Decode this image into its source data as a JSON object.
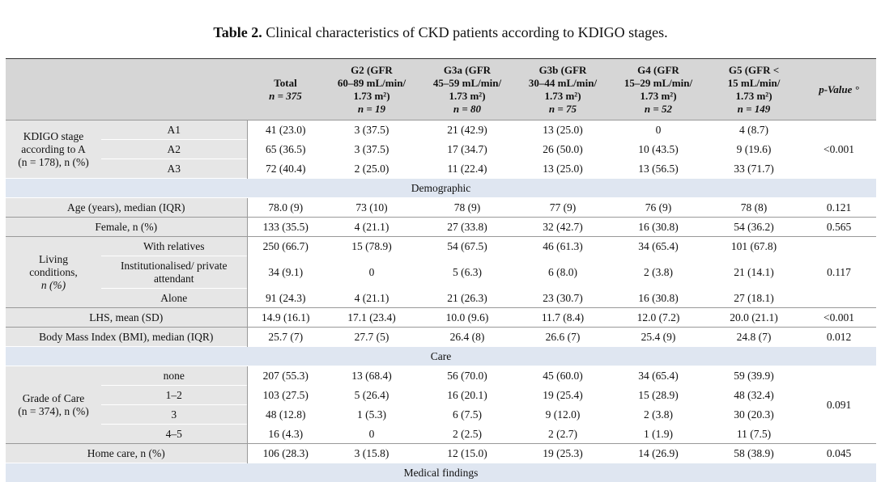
{
  "caption": {
    "label": "Table 2.",
    "text": "Clinical characteristics of CKD patients according to KDIGO stages."
  },
  "header": {
    "total": [
      "Total",
      "n = 375"
    ],
    "g2": [
      "G2 (GFR",
      "60–89 mL/min/",
      "1.73 m²)",
      "n = 19"
    ],
    "g3a": [
      "G3a (GFR",
      "45–59 mL/min/",
      "1.73 m²)",
      "n = 80"
    ],
    "g3b": [
      "G3b (GFR",
      "30–44 mL/min/",
      "1.73 m²)",
      "n = 75"
    ],
    "g4": [
      "G4 (GFR",
      "15–29 mL/min/",
      "1.73 m²)",
      "n = 52"
    ],
    "g5": [
      "G5 (GFR <",
      "15 mL/min/",
      "1.73 m²)",
      "n = 149"
    ],
    "pvalue": "p-Value °"
  },
  "kdigo": {
    "group_label": [
      "KDIGO stage",
      "according to A",
      "(n = 178), n (%)"
    ],
    "rows": [
      {
        "label": "A1",
        "values": [
          "41 (23.0)",
          "3 (37.5)",
          "21 (42.9)",
          "13 (25.0)",
          "0",
          "4 (8.7)"
        ]
      },
      {
        "label": "A2",
        "values": [
          "65 (36.5)",
          "3 (37.5)",
          "17 (34.7)",
          "26 (50.0)",
          "10 (43.5)",
          "9 (19.6)"
        ]
      },
      {
        "label": "A3",
        "values": [
          "72 (40.4)",
          "2 (25.0)",
          "11 (22.4)",
          "13 (25.0)",
          "13 (56.5)",
          "33 (71.7)"
        ]
      }
    ],
    "p": "<0.001"
  },
  "sections": {
    "demographic": "Demographic",
    "care": "Care",
    "medical": "Medical findings"
  },
  "age": {
    "label": "Age (years), median (IQR)",
    "values": [
      "78.0 (9)",
      "73 (10)",
      "78 (9)",
      "77 (9)",
      "76 (9)",
      "78 (8)"
    ],
    "p": "0.121"
  },
  "female": {
    "label": "Female, n (%)",
    "values": [
      "133 (35.5)",
      "4 (21.1)",
      "27 (33.8)",
      "32 (42.7)",
      "16 (30.8)",
      "54 (36.2)"
    ],
    "p": "0.565"
  },
  "living": {
    "group_label": [
      "Living",
      "conditions,",
      "n (%)"
    ],
    "rows": [
      {
        "label": "With relatives",
        "values": [
          "250 (66.7)",
          "15 (78.9)",
          "54 (67.5)",
          "46 (61.3)",
          "34 (65.4)",
          "101 (67.8)"
        ]
      },
      {
        "label": "Institutionalised/ private attendant",
        "values": [
          "34 (9.1)",
          "0",
          "5 (6.3)",
          "6 (8.0)",
          "2 (3.8)",
          "21 (14.1)"
        ]
      },
      {
        "label": "Alone",
        "values": [
          "91 (24.3)",
          "4 (21.1)",
          "21 (26.3)",
          "23 (30.7)",
          "16 (30.8)",
          "27 (18.1)"
        ]
      }
    ],
    "p": "0.117"
  },
  "lhs": {
    "label": "LHS, mean (SD)",
    "values": [
      "14.9 (16.1)",
      "17.1 (23.4)",
      "10.0 (9.6)",
      "11.7 (8.4)",
      "12.0 (7.2)",
      "20.0 (21.1)"
    ],
    "p": "<0.001"
  },
  "bmi": {
    "label": "Body Mass Index (BMI), median (IQR)",
    "values": [
      "25.7 (7)",
      "27.7 (5)",
      "26.4 (8)",
      "26.6 (7)",
      "25.4 (9)",
      "24.8 (7)"
    ],
    "p": "0.012"
  },
  "grade": {
    "group_label": [
      "Grade of Care",
      "(n = 374), n (%)"
    ],
    "rows": [
      {
        "label": "none",
        "values": [
          "207 (55.3)",
          "13 (68.4)",
          "56 (70.0)",
          "45 (60.0)",
          "34 (65.4)",
          "59 (39.9)"
        ]
      },
      {
        "label": "1–2",
        "values": [
          "103 (27.5)",
          "5 (26.4)",
          "16 (20.1)",
          "19 (25.4)",
          "15 (28.9)",
          "48 (32.4)"
        ]
      },
      {
        "label": "3",
        "values": [
          "48 (12.8)",
          "1 (5.3)",
          "6 (7.5)",
          "9 (12.0)",
          "2 (3.8)",
          "30 (20.3)"
        ]
      },
      {
        "label": "4–5",
        "values": [
          "16 (4.3)",
          "0",
          "2 (2.5)",
          "2 (2.7)",
          "1 (1.9)",
          "11 (7.5)"
        ]
      }
    ],
    "p": "0.091"
  },
  "homecare": {
    "label": "Home care, n (%)",
    "values": [
      "106 (28.3)",
      "3 (15.8)",
      "12 (15.0)",
      "19 (25.3)",
      "14 (26.9)",
      "58 (38.9)"
    ],
    "p": "0.045"
  }
}
